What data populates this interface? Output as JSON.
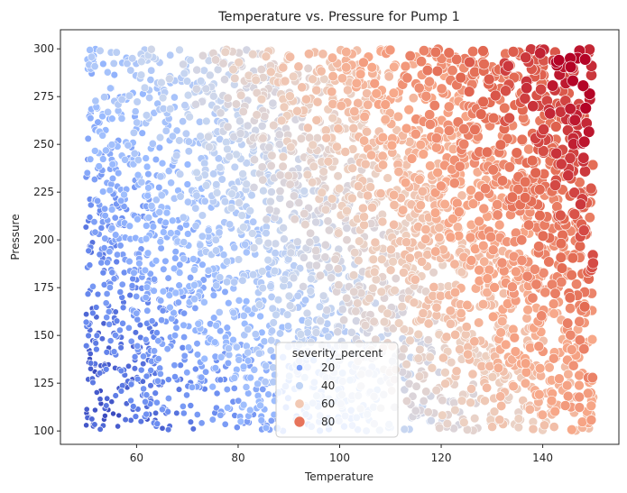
{
  "chart_data": {
    "type": "scatter",
    "title": "Temperature vs. Pressure for Pump 1",
    "xlabel": "Temperature",
    "ylabel": "Pressure",
    "xlim": [
      45,
      155
    ],
    "ylim": [
      93,
      310
    ],
    "xticks": [
      60,
      80,
      100,
      120,
      140
    ],
    "yticks": [
      100,
      125,
      150,
      175,
      200,
      225,
      250,
      275,
      300
    ],
    "point_distribution": {
      "count": 3600,
      "x_range": [
        50,
        150
      ],
      "y_range": [
        100,
        300
      ],
      "hue": "severity_percent",
      "hue_range": [
        0,
        100
      ],
      "size_scales_with_hue": true
    },
    "colormap": "coolwarm",
    "colormap_stops": [
      "#3b4cc0",
      "#6788ee",
      "#9abbff",
      "#c9d7f0",
      "#edd1c2",
      "#f7a889",
      "#e26952",
      "#b40426"
    ],
    "legend": {
      "title": "severity_percent",
      "entries": [
        "20",
        "40",
        "60",
        "80"
      ],
      "entry_colors": [
        "#7b9ff9",
        "#c0d4f5",
        "#f2c9b4",
        "#e7745b"
      ],
      "location": "bottom-center"
    }
  }
}
